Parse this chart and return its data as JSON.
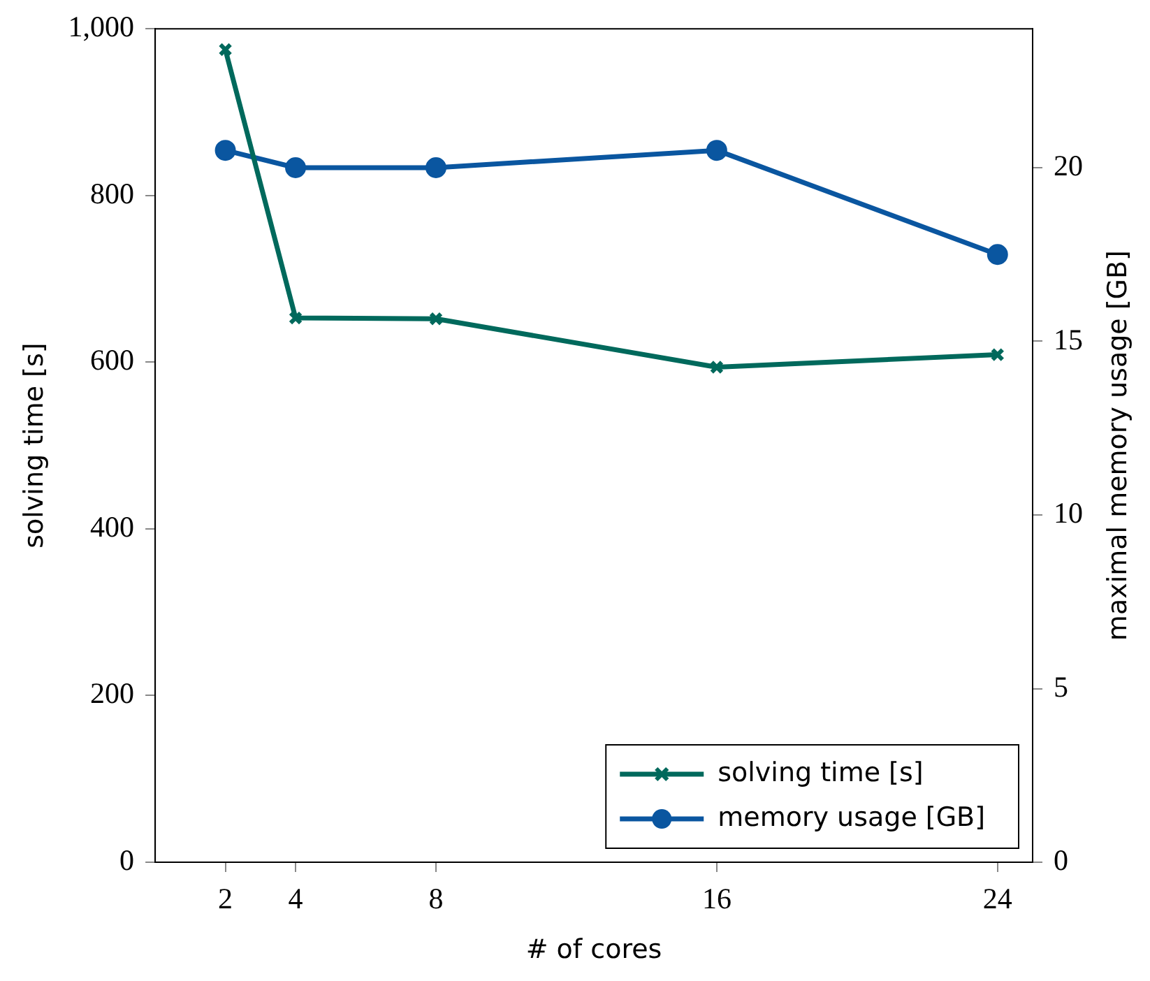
{
  "chart_data": {
    "type": "line",
    "xlabel": "# of cores",
    "ylabel": "solving time [s]",
    "y2label": "maximal memory usage [GB]",
    "x": [
      2,
      4,
      8,
      16,
      24
    ],
    "series": [
      {
        "name": "solving time [s]",
        "color": "#00695c",
        "marker": "cross",
        "values": [
          975,
          653,
          652,
          594,
          609
        ]
      },
      {
        "name": "memory usage [GB]",
        "color": "#0a56a0",
        "marker": "circle",
        "axis": "y2",
        "values": [
          20.5,
          20.0,
          20.0,
          20.5,
          17.5
        ]
      }
    ],
    "xlim": [
      0,
      25
    ],
    "xticks": [
      2,
      4,
      8,
      16,
      24
    ],
    "ylim": [
      0,
      1000
    ],
    "yticks": [
      0,
      200,
      400,
      600,
      800,
      {
        "value": 1000,
        "label": "1,000"
      }
    ],
    "y2lim": [
      0,
      24
    ],
    "y2ticks": [
      0,
      5,
      10,
      15,
      20
    ],
    "grid": false,
    "legend": "bottom right",
    "line_style": "solid"
  }
}
